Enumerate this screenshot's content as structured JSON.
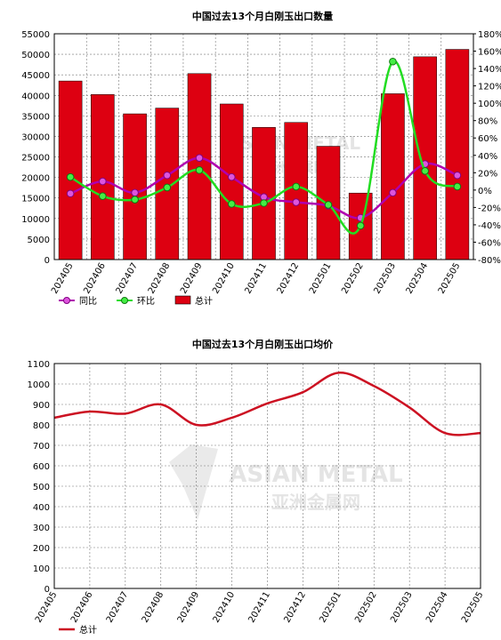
{
  "chart_data": [
    {
      "type": "bar",
      "title": "中国过去13个月白刚玉出口数量",
      "categories": [
        "202405",
        "202406",
        "202407",
        "202408",
        "202409",
        "202410",
        "202411",
        "202412",
        "202501",
        "202502",
        "202503",
        "202504",
        "202505"
      ],
      "ylim": [
        0,
        55000
      ],
      "y_ticks": [
        "0",
        "5000",
        "10000",
        "15000",
        "20000",
        "25000",
        "30000",
        "35000",
        "40000",
        "45000",
        "50000",
        "55000"
      ],
      "y2lim": [
        -80,
        180
      ],
      "y2_ticks": [
        "-80%",
        "-60%",
        "-40%",
        "-20%",
        "0%",
        "20%",
        "40%",
        "60%",
        "80%",
        "100%",
        "120%",
        "140%",
        "160%",
        "180%"
      ],
      "grid": true,
      "legend_position": "bottom-left",
      "series": [
        {
          "name": "同比",
          "type": "line",
          "axis": "right",
          "color": "#b000b0",
          "values": [
            -4,
            10,
            -3,
            17,
            37,
            15,
            -8,
            -14,
            -18,
            -32,
            -3,
            30,
            17
          ]
        },
        {
          "name": "环比",
          "type": "line",
          "axis": "right",
          "color": "#22dd22",
          "values": [
            15,
            -7,
            -11,
            3,
            23,
            -16,
            -15,
            4,
            -17,
            -41,
            148,
            22,
            4
          ]
        },
        {
          "name": "总计",
          "type": "bar",
          "axis": "left",
          "color": "#dd0011",
          "values": [
            43500,
            40200,
            35500,
            36900,
            45300,
            37900,
            32200,
            33400,
            27600,
            16200,
            40400,
            49400,
            51200
          ]
        }
      ]
    },
    {
      "type": "line",
      "title": "中国过去13个月白刚玉出口均价",
      "categories": [
        "202405",
        "202406",
        "202407",
        "202408",
        "202409",
        "202410",
        "202411",
        "202412",
        "202501",
        "202502",
        "202503",
        "202504",
        "202505"
      ],
      "ylim": [
        0,
        1100
      ],
      "y_ticks": [
        "0",
        "100",
        "200",
        "300",
        "400",
        "500",
        "600",
        "700",
        "800",
        "900",
        "1000",
        "1100"
      ],
      "grid": true,
      "legend_position": "bottom-left",
      "series": [
        {
          "name": "总计",
          "color": "#cc1122",
          "values": [
            835,
            865,
            855,
            900,
            800,
            835,
            905,
            960,
            1055,
            990,
            885,
            760,
            760
          ]
        }
      ]
    }
  ],
  "watermark": {
    "text_en": "ASIAN METAL",
    "text_cn": "亚洲金属网"
  }
}
